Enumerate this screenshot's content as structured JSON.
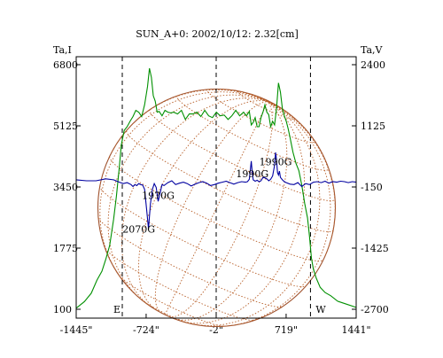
{
  "chart_data": {
    "type": "line",
    "title": "SUN_A+0: 2002/10/12: 2.32[cm]",
    "left_axis_label": "Ta,I",
    "right_axis_label": "Ta,V",
    "left_ticks": [
      "6800",
      "5125",
      "3450",
      "1775",
      "100"
    ],
    "left_tick_values": [
      6800,
      5125,
      3450,
      1775,
      100
    ],
    "right_ticks": [
      "2400",
      "1125",
      "-150",
      "-1425",
      "-2700"
    ],
    "right_tick_values": [
      2400,
      1125,
      -150,
      -1425,
      -2700
    ],
    "x_ticks": [
      "-1445\"",
      "-724\"",
      "-2\"",
      "719\"",
      "1441\""
    ],
    "x_tick_values": [
      -1445,
      -724,
      -2,
      719,
      1441
    ],
    "xlim": [
      -1445,
      1441
    ],
    "ylim_left": [
      100,
      6800
    ],
    "ylim_right": [
      -2700,
      2400
    ],
    "limb_markers": [
      {
        "label": "E",
        "x": -970
      },
      {
        "label": "W",
        "x": 970
      }
    ],
    "annotations": [
      {
        "text": "1990G",
        "x": 370,
        "y_right": 50
      },
      {
        "text": "1990G",
        "x": 610,
        "y_right": 300
      },
      {
        "text": "1970G",
        "x": -600,
        "y_right": -400
      },
      {
        "text": "2070G",
        "x": -800,
        "y_right": -1100
      }
    ],
    "series": [
      {
        "name": "I",
        "axis": "left",
        "color": "#009000",
        "x": [
          -1445,
          -1360,
          -1290,
          -1230,
          -1180,
          -1140,
          -1100,
          -1060,
          -1030,
          -1000,
          -980,
          -950,
          -920,
          -890,
          -860,
          -830,
          -800,
          -770,
          -740,
          -710,
          -690,
          -670,
          -650,
          -630,
          -610,
          -590,
          -560,
          -530,
          -500,
          -470,
          -440,
          -400,
          -360,
          -320,
          -280,
          -240,
          -200,
          -160,
          -120,
          -80,
          -40,
          0,
          40,
          80,
          120,
          160,
          200,
          240,
          280,
          310,
          340,
          360,
          380,
          400,
          420,
          440,
          460,
          480,
          500,
          520,
          540,
          560,
          580,
          600,
          620,
          640,
          660,
          680,
          700,
          720,
          740,
          760,
          790,
          820,
          850,
          880,
          910,
          940,
          960,
          980,
          1000,
          1030,
          1070,
          1120,
          1180,
          1250,
          1330,
          1441
        ],
        "y": [
          130,
          310,
          540,
          900,
          1140,
          1470,
          1850,
          2560,
          3200,
          4000,
          4600,
          5000,
          5100,
          5250,
          5380,
          5550,
          5500,
          5380,
          5700,
          6200,
          6700,
          6450,
          5950,
          5800,
          5500,
          5520,
          5400,
          5550,
          5500,
          5480,
          5500,
          5450,
          5550,
          5300,
          5450,
          5450,
          5500,
          5380,
          5550,
          5400,
          5350,
          5500,
          5400,
          5420,
          5300,
          5400,
          5550,
          5400,
          5500,
          5400,
          5520,
          5150,
          5220,
          5350,
          5100,
          5100,
          5350,
          5500,
          5700,
          5500,
          5430,
          5100,
          5250,
          5150,
          5600,
          6300,
          6050,
          5600,
          5400,
          5250,
          5050,
          4800,
          4400,
          4100,
          3900,
          3500,
          3000,
          2600,
          2100,
          1500,
          1200,
          950,
          700,
          560,
          470,
          320,
          250,
          150
        ]
      },
      {
        "name": "V",
        "axis": "right",
        "color": "#0000a0",
        "x": [
          -1445,
          -1340,
          -1240,
          -1140,
          -1060,
          -1000,
          -960,
          -920,
          -880,
          -860,
          -840,
          -820,
          -800,
          -780,
          -760,
          -740,
          -720,
          -700,
          -680,
          -660,
          -640,
          -620,
          -600,
          -580,
          -560,
          -540,
          -500,
          -460,
          -420,
          -380,
          -340,
          -300,
          -260,
          -220,
          -180,
          -140,
          -100,
          -60,
          -20,
          20,
          60,
          100,
          140,
          180,
          220,
          260,
          300,
          320,
          340,
          350,
          360,
          370,
          380,
          400,
          420,
          440,
          460,
          480,
          500,
          520,
          540,
          560,
          580,
          600,
          610,
          620,
          630,
          640,
          650,
          660,
          680,
          700,
          720,
          760,
          800,
          840,
          880,
          920,
          960,
          1000,
          1040,
          1080,
          1120,
          1160,
          1200,
          1240,
          1280,
          1320,
          1360,
          1400,
          1441
        ],
        "y": [
          0,
          -20,
          -20,
          20,
          0,
          -50,
          -80,
          -60,
          -100,
          -140,
          -100,
          -120,
          -80,
          -100,
          -110,
          -200,
          -600,
          -1020,
          -500,
          -200,
          -80,
          -160,
          -450,
          -280,
          -100,
          -120,
          -60,
          -20,
          -100,
          -70,
          -50,
          -80,
          -130,
          -90,
          -60,
          -40,
          -70,
          -120,
          -100,
          -70,
          -50,
          -30,
          -60,
          -90,
          -60,
          -40,
          -50,
          -40,
          10,
          200,
          390,
          150,
          0,
          -30,
          -10,
          -40,
          -20,
          50,
          40,
          20,
          -20,
          10,
          80,
          300,
          570,
          420,
          150,
          100,
          180,
          50,
          0,
          -40,
          -60,
          -90,
          -100,
          -60,
          -140,
          -80,
          -100,
          -50,
          -40,
          -60,
          -30,
          -70,
          -40,
          -50,
          -30,
          -40,
          -60,
          -40,
          -50
        ]
      }
    ]
  }
}
